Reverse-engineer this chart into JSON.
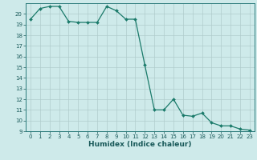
{
  "x": [
    0,
    1,
    2,
    3,
    4,
    5,
    6,
    7,
    8,
    9,
    10,
    11,
    12,
    13,
    14,
    15,
    16,
    17,
    18,
    19,
    20,
    21,
    22,
    23
  ],
  "y": [
    19.5,
    20.5,
    20.7,
    20.7,
    19.3,
    19.2,
    19.2,
    19.2,
    20.7,
    20.3,
    19.5,
    19.5,
    15.2,
    11.0,
    11.0,
    12.0,
    10.5,
    10.4,
    10.7,
    9.8,
    9.5,
    9.5,
    9.2,
    9.1
  ],
  "line_color": "#1a7a6a",
  "marker": "D",
  "marker_size": 2.0,
  "bg_color": "#ceeaea",
  "grid_major_color": "#b0cccc",
  "grid_minor_color": "#c4e0e0",
  "xlabel": "Humidex (Indice chaleur)",
  "xlim": [
    -0.5,
    23.5
  ],
  "ylim": [
    9,
    21
  ],
  "yticks": [
    9,
    10,
    11,
    12,
    13,
    14,
    15,
    16,
    17,
    18,
    19,
    20
  ],
  "xticks": [
    0,
    1,
    2,
    3,
    4,
    5,
    6,
    7,
    8,
    9,
    10,
    11,
    12,
    13,
    14,
    15,
    16,
    17,
    18,
    19,
    20,
    21,
    22,
    23
  ],
  "tick_fontsize": 5.0,
  "xlabel_fontsize": 6.5,
  "label_color": "#1a5a5a",
  "spine_color": "#2a7a7a",
  "linewidth": 0.9
}
